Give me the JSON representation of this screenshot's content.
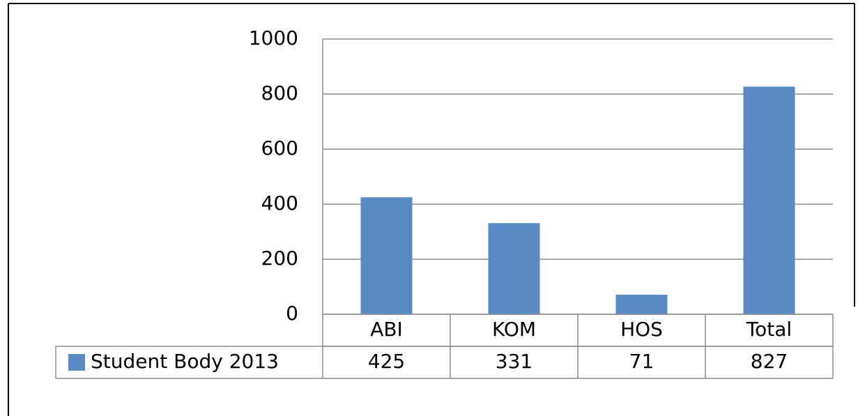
{
  "chart_data": {
    "type": "bar",
    "categories": [
      "ABI",
      "KOM",
      "HOS",
      "Total"
    ],
    "series": [
      {
        "name": "Student Body 2013",
        "color": "#5a8ac6",
        "values": [
          425,
          331,
          71,
          827
        ]
      }
    ],
    "ylim": [
      0,
      1000
    ],
    "yticks": [
      0,
      200,
      400,
      600,
      800,
      1000
    ],
    "grid": true,
    "data_table": true
  }
}
